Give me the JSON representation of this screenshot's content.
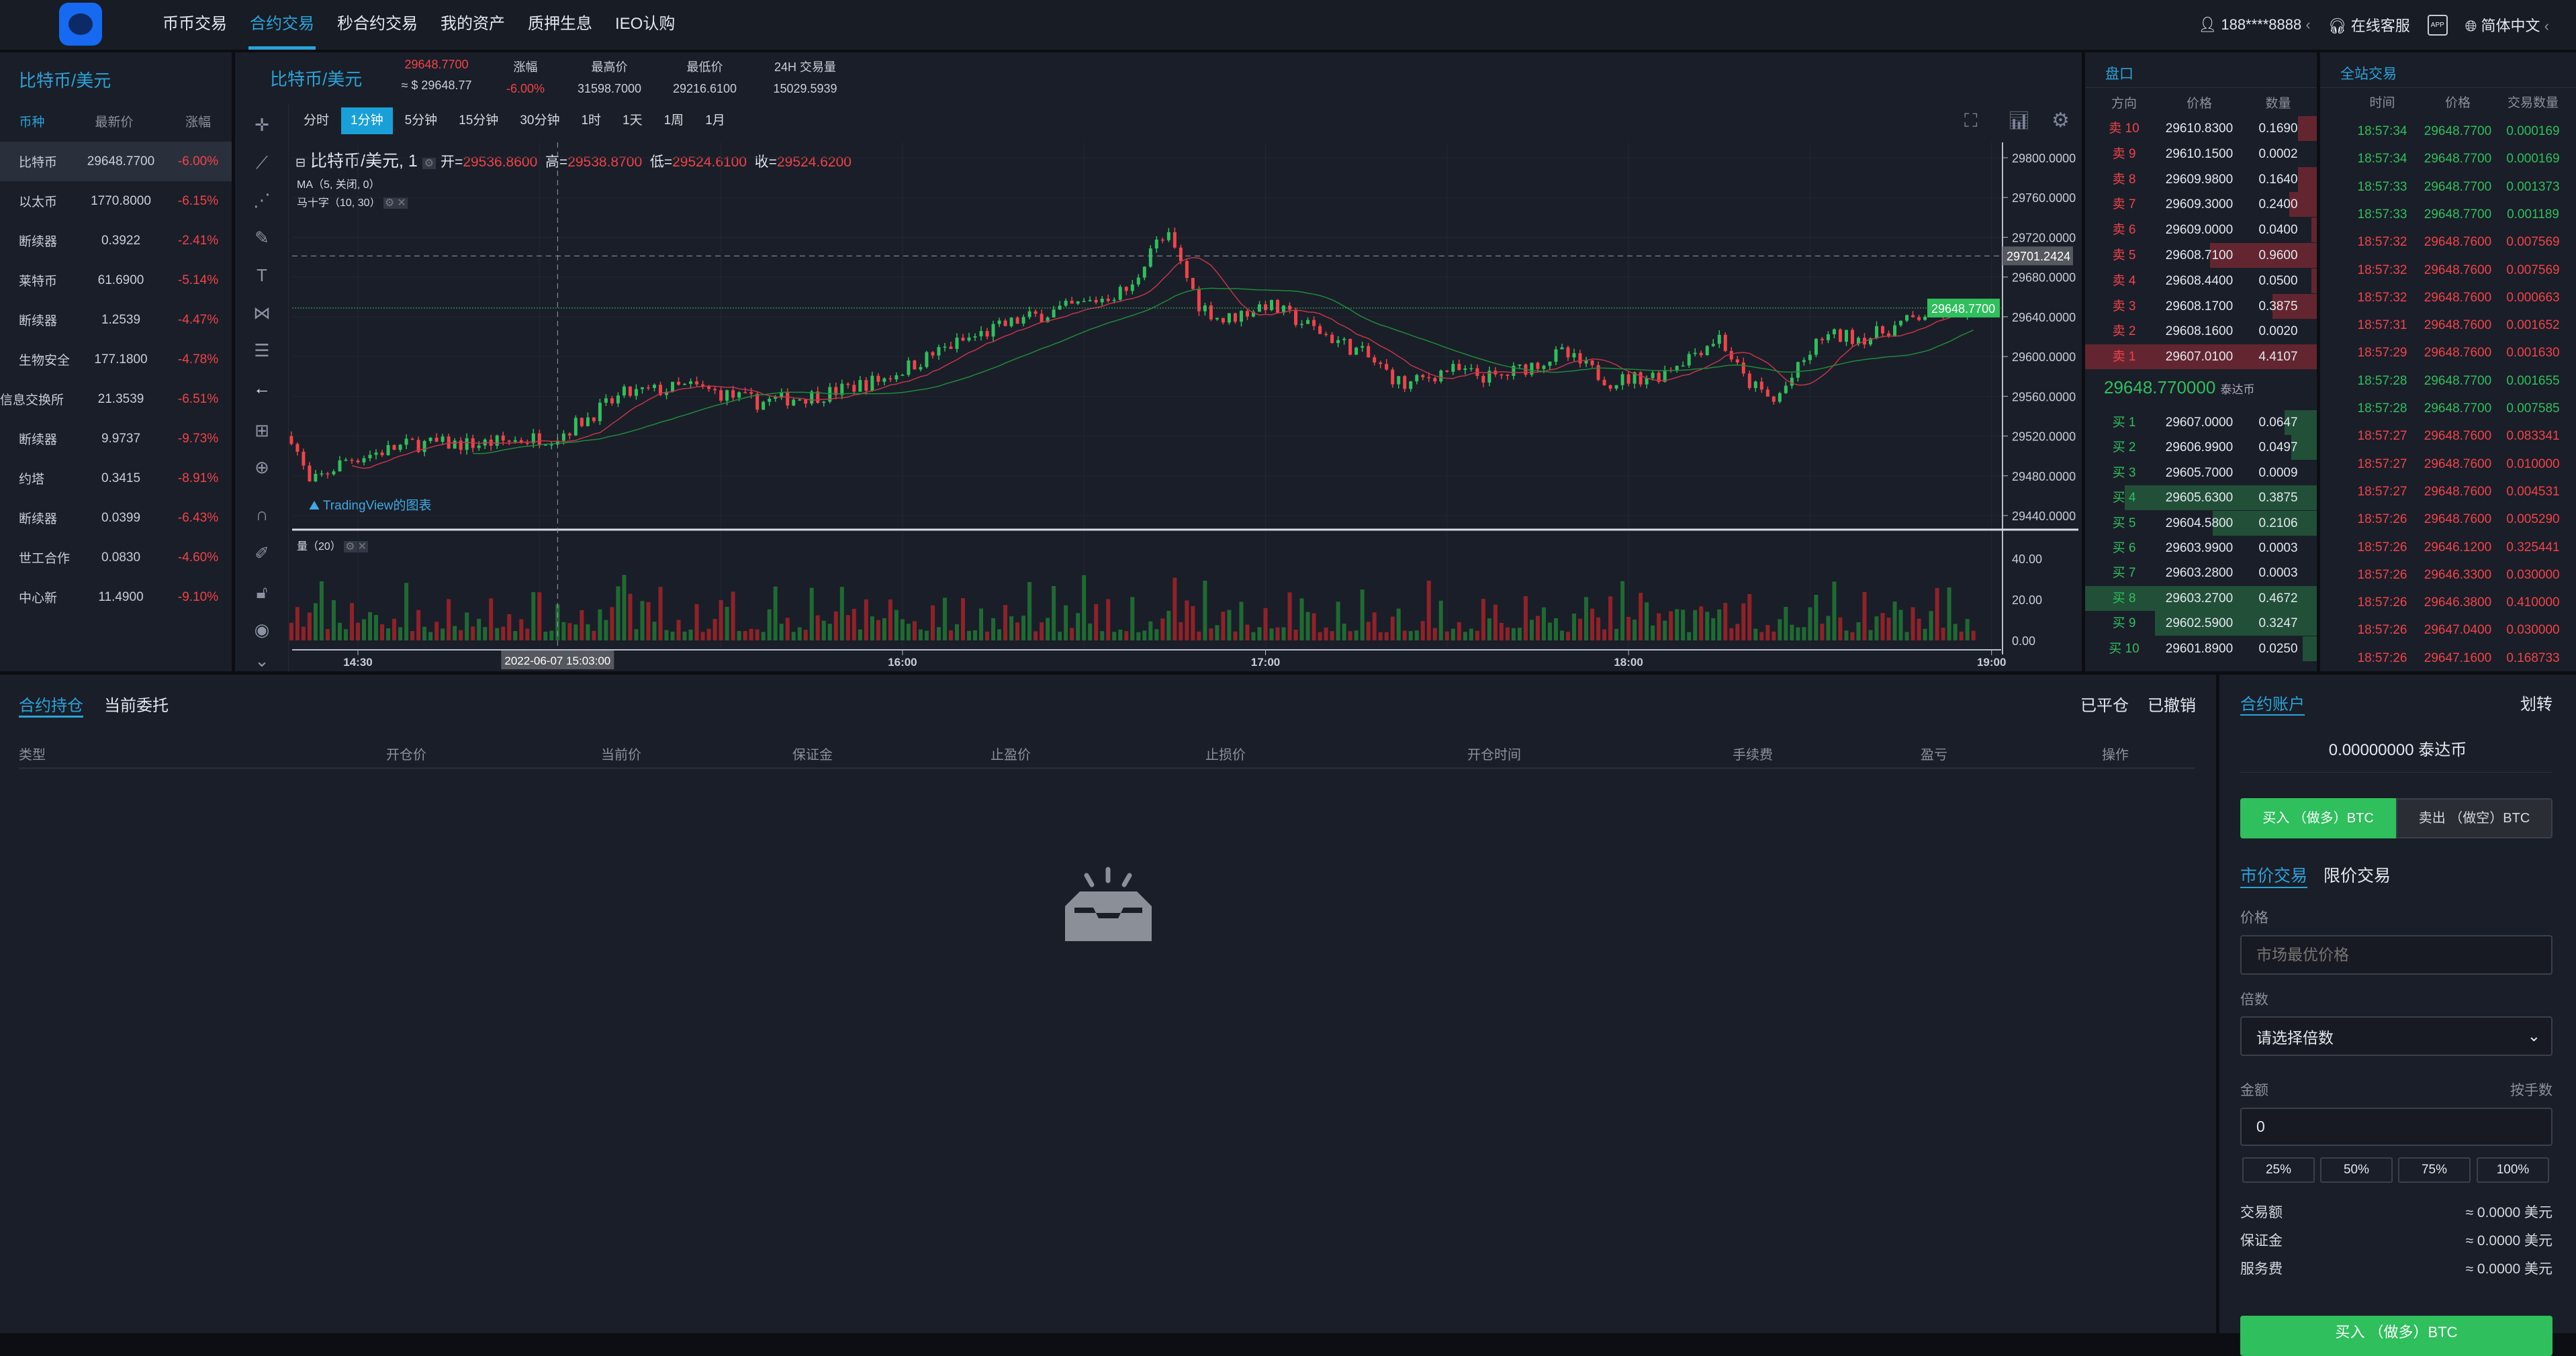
{
  "colors": {
    "accent": "#2aa3d8",
    "up": "#2fbf5d",
    "down": "#f0434a",
    "bg": "#1a1e28"
  },
  "header": {
    "nav": [
      "币币交易",
      "合约交易",
      "秒合约交易",
      "我的资产",
      "质押生息",
      "IEO认购"
    ],
    "active_nav": 1,
    "user": "188****8888",
    "support": "在线客服",
    "app_icon": "APP",
    "language": "简体中文"
  },
  "left": {
    "title": "比特币/美元",
    "columns": [
      "币种",
      "最新价",
      "涨幅"
    ],
    "rows": [
      [
        "比特币",
        "29648.7700",
        "-6.00%"
      ],
      [
        "以太币",
        "1770.8000",
        "-6.15%"
      ],
      [
        "断续器",
        "0.3922",
        "-2.41%"
      ],
      [
        "莱特币",
        "61.6900",
        "-5.14%"
      ],
      [
        "断续器",
        "1.2539",
        "-4.47%"
      ],
      [
        "生物安全",
        "177.1800",
        "-4.78%"
      ],
      [
        "信息交换所",
        "21.3539",
        "-6.51%"
      ],
      [
        "断续器",
        "9.9737",
        "-9.73%"
      ],
      [
        "约塔",
        "0.3415",
        "-8.91%"
      ],
      [
        "断续器",
        "0.0399",
        "-6.43%"
      ],
      [
        "世工合作",
        "0.0830",
        "-4.60%"
      ],
      [
        "中心新",
        "11.4900",
        "-9.10%"
      ]
    ]
  },
  "ticker": {
    "pair": "比特币/美元",
    "price": "29648.7700",
    "price_usd": "≈ $ 29648.77",
    "change_label": "涨幅",
    "change": "-6.00%",
    "high_label": "最高价",
    "high": "31598.7000",
    "low_label": "最低价",
    "low": "29216.6100",
    "vol_label": "24H 交易量",
    "vol": "15029.5939"
  },
  "chart": {
    "timeframes": [
      "分时",
      "1分钟",
      "5分钟",
      "15分钟",
      "30分钟",
      "1时",
      "1天",
      "1周",
      "1月"
    ],
    "active_tf": 1,
    "legend": {
      "symbol": "比特币/美元, 1",
      "open_label": "开=",
      "open": "29536.8600",
      "high_label": "高=",
      "high": "29538.8700",
      "low_label": "低=",
      "low": "29524.6100",
      "close_label": "收=",
      "close": "29524.6200",
      "ma": "MA（5, 关闭, 0）",
      "macross": "马十字（10, 30）",
      "volume": "量（20）"
    },
    "watermark": "TradingView的图表",
    "crosshair_time": "2022-06-07 15:03:00",
    "crosshair_price": "29701.2424",
    "last_price": "29648.7700"
  },
  "chart_data": {
    "type": "candlestick",
    "interval": "1分钟",
    "x_ticks": [
      "14:30",
      "16:00",
      "17:00",
      "18:00",
      "19:00"
    ],
    "y_ticks": [
      "29800.0000",
      "29760.0000",
      "29720.0000",
      "29680.0000",
      "29640.0000",
      "29600.0000",
      "29560.0000",
      "29520.0000",
      "29480.0000",
      "29440.0000"
    ],
    "ylim": [
      29426,
      29816
    ],
    "volume_ticks": [
      "40.00",
      "20.00",
      "0.00"
    ],
    "volume_ylim": [
      0,
      50
    ],
    "close_path": [
      [
        "14:19",
        29520
      ],
      [
        "14:22",
        29471
      ],
      [
        "14:28",
        29496
      ],
      [
        "14:39",
        29512
      ],
      [
        "14:50",
        29512
      ],
      [
        "15:03",
        29520
      ],
      [
        "15:14",
        29562
      ],
      [
        "15:25",
        29570
      ],
      [
        "15:36",
        29554
      ],
      [
        "15:47",
        29562
      ],
      [
        "15:57",
        29578
      ],
      [
        "16:08",
        29611
      ],
      [
        "16:19",
        29636
      ],
      [
        "16:30",
        29653
      ],
      [
        "16:38",
        29669
      ],
      [
        "16:41",
        29711
      ],
      [
        "16:44",
        29719
      ],
      [
        "16:49",
        29653
      ],
      [
        "16:53",
        29636
      ],
      [
        "17:00",
        29653
      ],
      [
        "17:08",
        29628
      ],
      [
        "17:16",
        29603
      ],
      [
        "17:23",
        29570
      ],
      [
        "17:30",
        29587
      ],
      [
        "17:38",
        29578
      ],
      [
        "17:49",
        29603
      ],
      [
        "17:57",
        29575
      ],
      [
        "18:05",
        29582
      ],
      [
        "18:15",
        29620
      ],
      [
        "18:19",
        29578
      ],
      [
        "18:24",
        29554
      ],
      [
        "18:32",
        29620
      ],
      [
        "18:40",
        29620
      ],
      [
        "18:50",
        29645
      ],
      [
        "18:57",
        29648.77
      ]
    ]
  },
  "orderbook": {
    "title": "盘口",
    "columns": [
      "方向",
      "价格",
      "数量"
    ],
    "asks": [
      [
        "卖 10",
        "29610.8300",
        "0.1690"
      ],
      [
        "卖 9",
        "29610.1500",
        "0.0002"
      ],
      [
        "卖 8",
        "29609.9800",
        "0.1640"
      ],
      [
        "卖 7",
        "29609.3000",
        "0.2400"
      ],
      [
        "卖 6",
        "29609.0000",
        "0.0400"
      ],
      [
        "卖 5",
        "29608.7100",
        "0.9600"
      ],
      [
        "卖 4",
        "29608.4400",
        "0.0500"
      ],
      [
        "卖 3",
        "29608.1700",
        "0.3875"
      ],
      [
        "卖 2",
        "29608.1600",
        "0.0020"
      ],
      [
        "卖 1",
        "29607.0100",
        "4.4107"
      ]
    ],
    "ask_depth": [
      0.08,
      0.0,
      0.08,
      0.12,
      0.02,
      0.46,
      0.02,
      0.19,
      0.0,
      1.0
    ],
    "mid_price": "29648.770000",
    "mid_unit": "泰达币",
    "bids": [
      [
        "买 1",
        "29607.0000",
        "0.0647"
      ],
      [
        "买 2",
        "29606.9900",
        "0.0497"
      ],
      [
        "买 3",
        "29605.7000",
        "0.0009"
      ],
      [
        "买 4",
        "29605.6300",
        "0.3875"
      ],
      [
        "买 5",
        "29604.5800",
        "0.2106"
      ],
      [
        "买 6",
        "29603.9900",
        "0.0003"
      ],
      [
        "买 7",
        "29603.2800",
        "0.0003"
      ],
      [
        "买 8",
        "29603.2700",
        "0.4672"
      ],
      [
        "买 9",
        "29602.5900",
        "0.3247"
      ],
      [
        "买 10",
        "29601.8900",
        "0.0250"
      ]
    ],
    "bid_depth": [
      0.14,
      0.11,
      0.0,
      0.83,
      0.45,
      0.0,
      0.0,
      1.0,
      0.7,
      0.06
    ]
  },
  "trades": {
    "title": "全站交易",
    "columns": [
      "时间",
      "价格",
      "交易数量"
    ],
    "rows": [
      [
        "18:57:34",
        "29648.7700",
        "0.000169",
        "up"
      ],
      [
        "18:57:34",
        "29648.7700",
        "0.000169",
        "up"
      ],
      [
        "18:57:33",
        "29648.7700",
        "0.001373",
        "up"
      ],
      [
        "18:57:33",
        "29648.7700",
        "0.001189",
        "up"
      ],
      [
        "18:57:32",
        "29648.7600",
        "0.007569",
        "down"
      ],
      [
        "18:57:32",
        "29648.7600",
        "0.007569",
        "down"
      ],
      [
        "18:57:32",
        "29648.7600",
        "0.000663",
        "down"
      ],
      [
        "18:57:31",
        "29648.7600",
        "0.001652",
        "down"
      ],
      [
        "18:57:29",
        "29648.7600",
        "0.001630",
        "down"
      ],
      [
        "18:57:28",
        "29648.7700",
        "0.001655",
        "up"
      ],
      [
        "18:57:28",
        "29648.7700",
        "0.007585",
        "up"
      ],
      [
        "18:57:27",
        "29648.7600",
        "0.083341",
        "down"
      ],
      [
        "18:57:27",
        "29648.7600",
        "0.010000",
        "down"
      ],
      [
        "18:57:27",
        "29648.7600",
        "0.004531",
        "down"
      ],
      [
        "18:57:26",
        "29648.7600",
        "0.005290",
        "down"
      ],
      [
        "18:57:26",
        "29646.1200",
        "0.325441",
        "down"
      ],
      [
        "18:57:26",
        "29646.3300",
        "0.030000",
        "down"
      ],
      [
        "18:57:26",
        "29646.3800",
        "0.410000",
        "down"
      ],
      [
        "18:57:26",
        "29647.0400",
        "0.030000",
        "down"
      ],
      [
        "18:57:26",
        "29647.1600",
        "0.168733",
        "down"
      ]
    ]
  },
  "positions": {
    "tabs": [
      "合约持仓",
      "当前委托"
    ],
    "right_tabs": [
      "已平仓",
      "已撤销"
    ],
    "columns": [
      "类型",
      "开仓价",
      "当前价",
      "保证金",
      "止盈价",
      "止损价",
      "开仓时间",
      "手续费",
      "盈亏",
      "操作"
    ]
  },
  "trade_panel": {
    "account": "合约账户",
    "transfer": "划转",
    "balance": "0.00000000 泰达币",
    "buy_tab": "买入 （做多）BTC",
    "sell_tab": "卖出 （做空）BTC",
    "market": "市价交易",
    "limit": "限价交易",
    "price_label": "价格",
    "price_placeholder": "市场最优价格",
    "lever_label": "倍数",
    "lever_value": "请选择倍数",
    "amount_label": "金额",
    "by_lots": "按手数",
    "amount_value": "0",
    "pcts": [
      "25%",
      "50%",
      "75%",
      "100%"
    ],
    "summary": [
      [
        "交易额",
        "≈ 0.0000 美元"
      ],
      [
        "保证金",
        "≈ 0.0000 美元"
      ],
      [
        "服务费",
        "≈ 0.0000 美元"
      ]
    ],
    "submit": "买入 （做多）BTC"
  }
}
